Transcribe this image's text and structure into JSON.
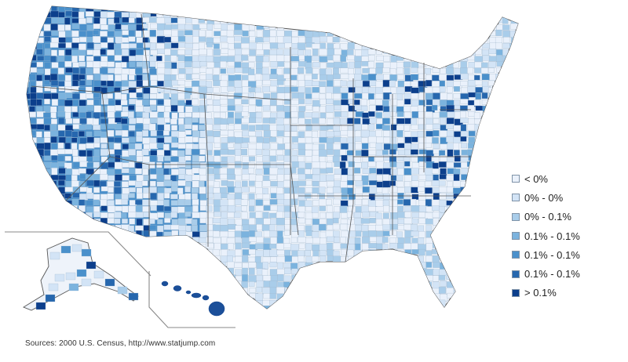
{
  "map": {
    "subject": "U.S. county choropleth map",
    "insets": [
      "Alaska",
      "Hawaii"
    ]
  },
  "legend": {
    "items": [
      {
        "label": "< 0%",
        "color": "#eaf1fb"
      },
      {
        "label": "0% - 0%",
        "color": "#d3e4f6"
      },
      {
        "label": "0% - 0.1%",
        "color": "#a9cdea"
      },
      {
        "label": "0.1% - 0.1%",
        "color": "#7bb3de"
      },
      {
        "label": "0.1% - 0.1%",
        "color": "#4a90cb"
      },
      {
        "label": "0.1% - 0.1%",
        "color": "#2667ae"
      },
      {
        "label": "> 0.1%",
        "color": "#0c3f8c"
      }
    ]
  },
  "source": "Sources: 2000 U.S. Census, http://www.statjump.com",
  "colors": {
    "county_border": "#9fb6cc",
    "state_border": "#555555",
    "inset_frame": "#888888"
  }
}
